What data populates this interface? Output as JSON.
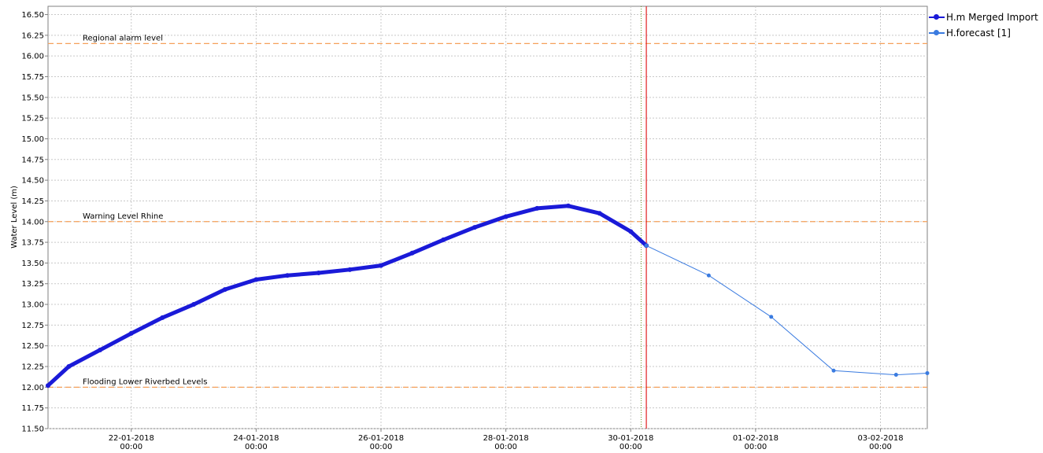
{
  "chart_data": {
    "type": "line",
    "ylabel": "Water Level (m)",
    "xlabel": "",
    "ylim": [
      11.5,
      16.6
    ],
    "xlim": [
      "2018-01-20T16:00",
      "2018-02-03T18:00"
    ],
    "yticks": [
      11.5,
      11.75,
      12.0,
      12.25,
      12.5,
      12.75,
      13.0,
      13.25,
      13.5,
      13.75,
      14.0,
      14.25,
      14.5,
      14.75,
      15.0,
      15.25,
      15.5,
      15.75,
      16.0,
      16.25,
      16.5
    ],
    "xticks": [
      {
        "x": "2018-01-22T00:00",
        "date": "22-01-2018",
        "time": "00:00"
      },
      {
        "x": "2018-01-24T00:00",
        "date": "24-01-2018",
        "time": "00:00"
      },
      {
        "x": "2018-01-26T00:00",
        "date": "26-01-2018",
        "time": "00:00"
      },
      {
        "x": "2018-01-28T00:00",
        "date": "28-01-2018",
        "time": "00:00"
      },
      {
        "x": "2018-01-30T00:00",
        "date": "30-01-2018",
        "time": "00:00"
      },
      {
        "x": "2018-02-01T00:00",
        "date": "01-02-2018",
        "time": "00:00"
      },
      {
        "x": "2018-02-03T00:00",
        "date": "03-02-2018",
        "time": "00:00"
      }
    ],
    "grid": true,
    "legend_position": "top-right",
    "reference_lines": [
      {
        "label": "Regional alarm level",
        "y": 16.15,
        "color": "#f5a05a"
      },
      {
        "label": "Warning Level Rhine",
        "y": 14.0,
        "color": "#f5a05a"
      },
      {
        "label": "Flooding Lower Riverbed Levels",
        "y": 12.0,
        "color": "#f5a05a"
      }
    ],
    "vertical_markers": [
      {
        "x": "2018-01-30T06:00",
        "color": "#e02020",
        "style": "solid"
      },
      {
        "x": "2018-01-30T04:00",
        "color": "#6a9a2a",
        "style": "dotted"
      }
    ],
    "series": [
      {
        "name": "H.m Merged Import",
        "color": "#1a1ad8",
        "style": "thick",
        "points": [
          [
            "2018-01-20T16:00",
            12.02
          ],
          [
            "2018-01-21T00:00",
            12.25
          ],
          [
            "2018-01-21T12:00",
            12.45
          ],
          [
            "2018-01-22T00:00",
            12.65
          ],
          [
            "2018-01-22T12:00",
            12.84
          ],
          [
            "2018-01-23T00:00",
            13.0
          ],
          [
            "2018-01-23T12:00",
            13.18
          ],
          [
            "2018-01-24T00:00",
            13.3
          ],
          [
            "2018-01-24T12:00",
            13.35
          ],
          [
            "2018-01-25T00:00",
            13.38
          ],
          [
            "2018-01-25T12:00",
            13.42
          ],
          [
            "2018-01-26T00:00",
            13.47
          ],
          [
            "2018-01-26T12:00",
            13.62
          ],
          [
            "2018-01-27T00:00",
            13.78
          ],
          [
            "2018-01-27T12:00",
            13.93
          ],
          [
            "2018-01-28T00:00",
            14.06
          ],
          [
            "2018-01-28T12:00",
            14.16
          ],
          [
            "2018-01-29T00:00",
            14.19
          ],
          [
            "2018-01-29T12:00",
            14.1
          ],
          [
            "2018-01-30T00:00",
            13.88
          ],
          [
            "2018-01-30T06:00",
            13.71
          ]
        ]
      },
      {
        "name": "H.forecast [1]",
        "color": "#3a7be0",
        "style": "thin",
        "points": [
          [
            "2018-01-30T06:00",
            13.71
          ],
          [
            "2018-01-31T06:00",
            13.35
          ],
          [
            "2018-02-01T06:00",
            12.85
          ],
          [
            "2018-02-02T06:00",
            12.2
          ],
          [
            "2018-02-03T06:00",
            12.15
          ],
          [
            "2018-02-03T18:00",
            12.17
          ]
        ]
      }
    ]
  }
}
